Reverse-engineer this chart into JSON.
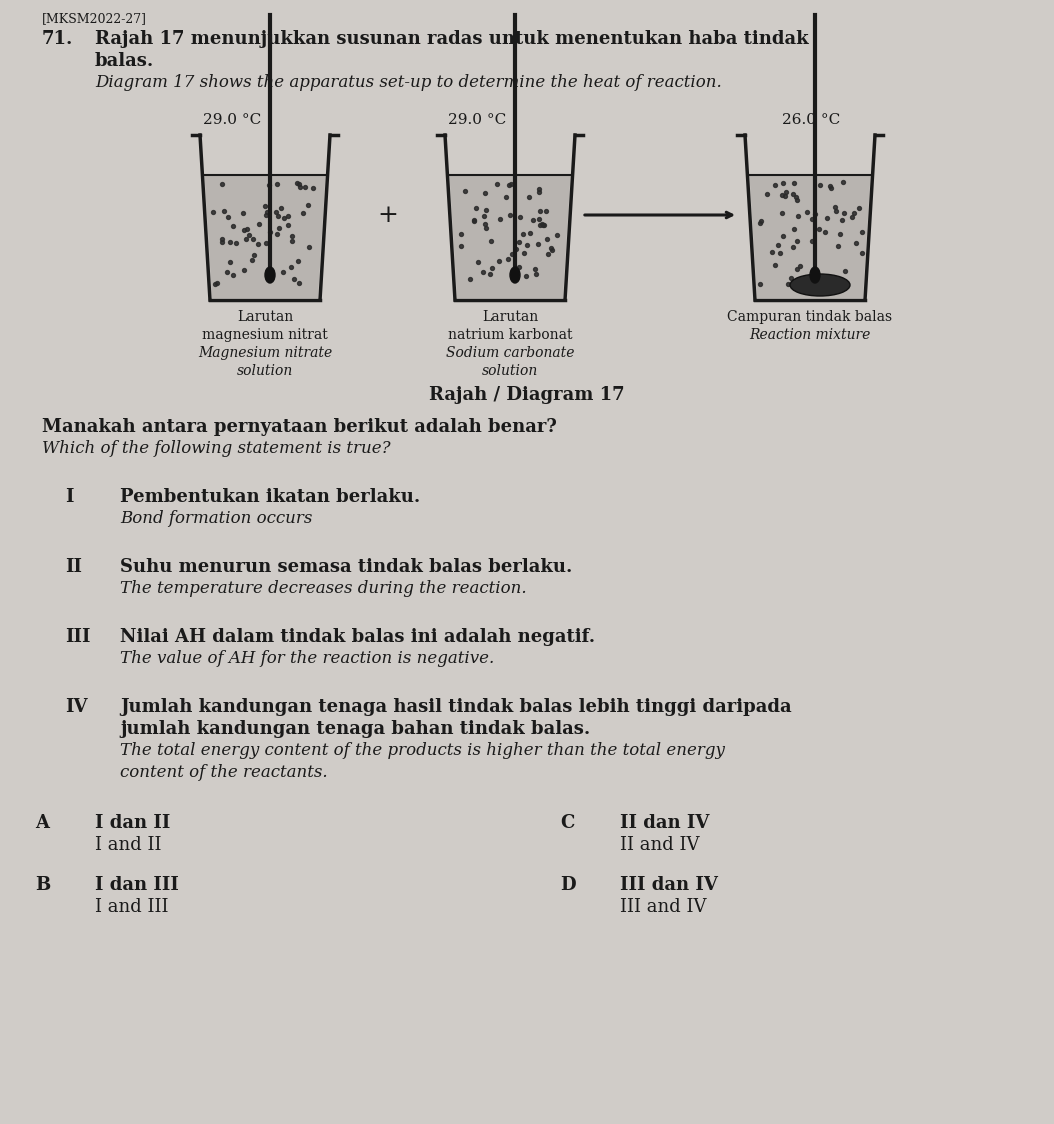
{
  "bg_color": "#d0ccc8",
  "header": "[MKSM2022-27]",
  "q_number": "71.",
  "title_malay_line1": "Rajah 17 menunjukkan susunan radas untuk menentukan haba tindak",
  "title_malay_line2": "balas.",
  "title_english": "Diagram 17 shows the apparatus set-up to determine the heat of reaction.",
  "temp1": "29.0 °C",
  "temp2": "29.0 °C",
  "temp3": "26.0 °C",
  "label1_line1": "Larutan",
  "label1_line2": "magnesium nitrat",
  "label1_line3": "Magnesium nitrate",
  "label1_line4": "solution",
  "label2_line1": "Larutan",
  "label2_line2": "natrium karbonat",
  "label2_line3": "Sodium carbonate",
  "label2_line4": "solution",
  "label3_line1": "Campuran tindak balas",
  "label3_line2": "Reaction mixture",
  "diagram_title": "Rajah / Diagram 17",
  "question_malay": "Manakah antara pernyataan berikut adalah benar?",
  "question_english": "Which of the following statement is true?",
  "roman1": "I",
  "stmt1_malay": "Pembentukan ikatan berlaku.",
  "stmt1_english": "Bond formation occurs",
  "roman2": "II",
  "stmt2_malay": "Suhu menurun semasa tindak balas berlaku.",
  "stmt2_english": "The temperature decreases during the reaction.",
  "roman3": "III",
  "stmt3_malay": "Nilai AH dalam tindak balas ini adalah negatif.",
  "stmt3_english": "The value of AH for the reaction is negative.",
  "roman4": "IV",
  "stmt4_malay_line1": "Jumlah kandungan tenaga hasil tindak balas lebih tinggi daripada",
  "stmt4_malay_line2": "jumlah kandungan tenaga bahan tindak balas.",
  "stmt4_english_line1": "The total energy content of the products is higher than the total energy",
  "stmt4_english_line2": "content of the reactants.",
  "optA_letter": "A",
  "optA_malay": "I dan II",
  "optA_english": "I and II",
  "optC_letter": "C",
  "optC_malay": "II dan IV",
  "optC_english": "II and IV",
  "optB_letter": "B",
  "optB_malay": "I dan III",
  "optB_english": "I and III",
  "optD_letter": "D",
  "optD_malay": "III dan IV",
  "optD_english": "III and IV",
  "text_color": "#1a1a1a",
  "beaker_color": "#1a1a1a",
  "liquid_bg": "#b8b4b0",
  "dot_color": "#2a2a2a"
}
